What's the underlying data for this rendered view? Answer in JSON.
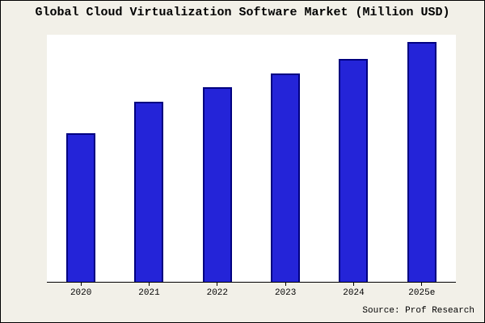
{
  "source_note": "Source: Prof Research",
  "colors": {
    "background": "#f2f0e8",
    "plot_background": "#ffffff",
    "bar_fill": "#2424d8",
    "bar_border": "#000080",
    "axis": "#000000",
    "text": "#000000"
  },
  "chart_data": {
    "type": "bar",
    "title": "Global Cloud Virtualization Software Market (Million USD)",
    "categories": [
      "2020",
      "2021",
      "2022",
      "2023",
      "2024",
      "2025e"
    ],
    "values": [
      62,
      75,
      81,
      87,
      93,
      100
    ],
    "xlabel": "",
    "ylabel": "",
    "ylim": [
      0,
      103
    ],
    "grid": false,
    "legend": false,
    "y_axis_labels_visible": false,
    "annotation": "Source: Prof Research"
  }
}
